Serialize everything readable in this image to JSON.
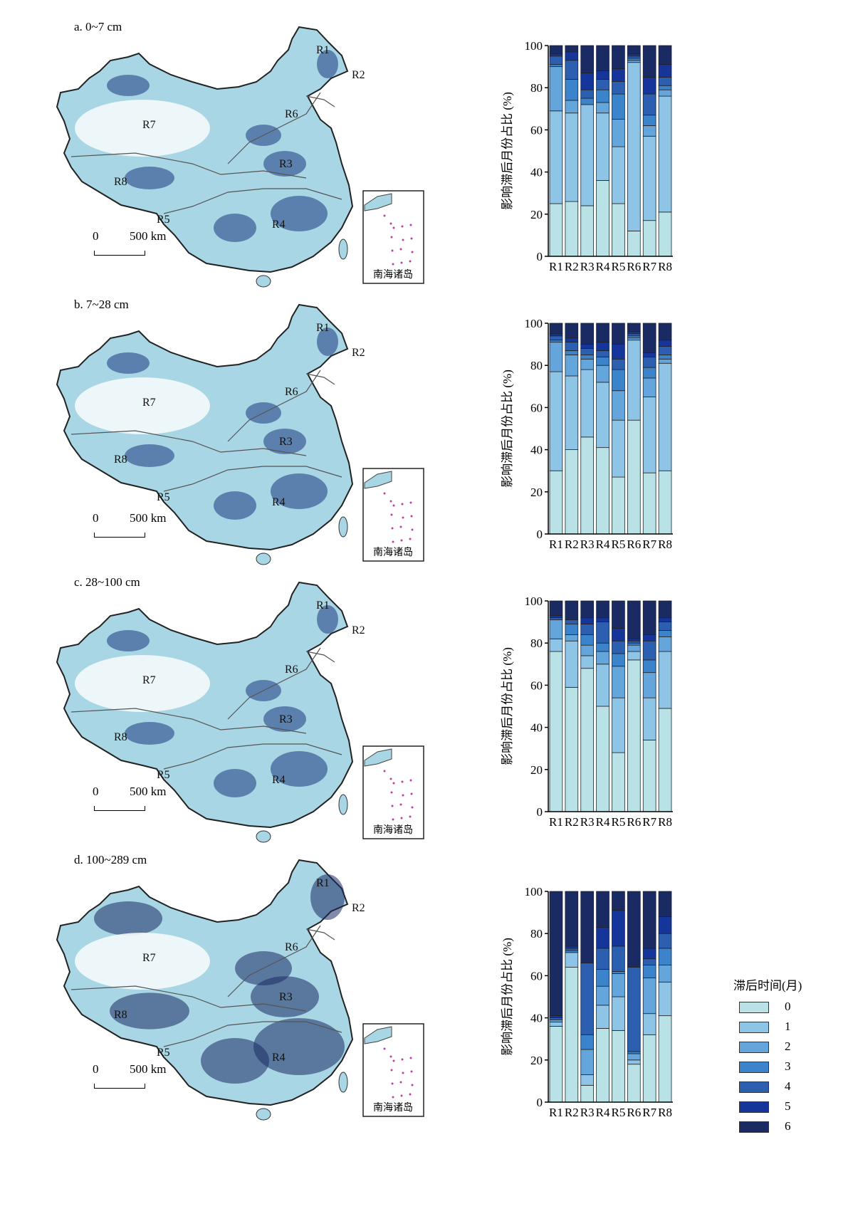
{
  "panels": [
    {
      "label": "a. 0~7 cm"
    },
    {
      "label": "b. 7~28 cm"
    },
    {
      "label": "c. 28~100 cm"
    },
    {
      "label": "d. 100~289 cm"
    }
  ],
  "map": {
    "region_labels": [
      "R1",
      "R2",
      "R3",
      "R4",
      "R5",
      "R6",
      "R7",
      "R8"
    ],
    "scale_start": "0",
    "scale_end": "500 km",
    "inset_label": "南海诸岛"
  },
  "legend": {
    "title": "滞后时间(月)",
    "items": [
      {
        "label": "0",
        "color": "#b8e2e6"
      },
      {
        "label": "1",
        "color": "#8ec4e6"
      },
      {
        "label": "2",
        "color": "#64a6dc"
      },
      {
        "label": "3",
        "color": "#3b84cb"
      },
      {
        "label": "4",
        "color": "#2c5fb0"
      },
      {
        "label": "5",
        "color": "#16359a"
      },
      {
        "label": "6",
        "color": "#1a2b63"
      }
    ]
  },
  "chart_data": [
    {
      "type": "bar",
      "stacked": true,
      "ylabel": "影响滞后月份占比 (%)",
      "ylim": [
        0,
        100
      ],
      "yticks": [
        0,
        20,
        40,
        60,
        80,
        100
      ],
      "categories": [
        "R1",
        "R2",
        "R3",
        "R4",
        "R5",
        "R6",
        "R7",
        "R8"
      ],
      "series": [
        {
          "name": "0",
          "values": [
            25,
            26,
            24,
            36,
            25,
            12,
            17,
            21
          ]
        },
        {
          "name": "1",
          "values": [
            44,
            42,
            48,
            32,
            27,
            80,
            40,
            55
          ]
        },
        {
          "name": "2",
          "values": [
            21,
            6,
            0,
            5,
            13,
            1,
            5,
            3
          ]
        },
        {
          "name": "3",
          "values": [
            1,
            10,
            3,
            6,
            12,
            1,
            5,
            2
          ]
        },
        {
          "name": "4",
          "values": [
            4,
            9,
            4,
            5,
            6,
            1,
            10,
            4
          ]
        },
        {
          "name": "5",
          "values": [
            1,
            4,
            8,
            4,
            6,
            1,
            8,
            6
          ]
        },
        {
          "name": "6",
          "values": [
            4,
            3,
            13,
            12,
            11,
            4,
            15,
            9
          ]
        }
      ]
    },
    {
      "type": "bar",
      "stacked": true,
      "ylabel": "影响滞后月份占比 (%)",
      "ylim": [
        0,
        100
      ],
      "yticks": [
        0,
        20,
        40,
        60,
        80,
        100
      ],
      "categories": [
        "R1",
        "R2",
        "R3",
        "R4",
        "R5",
        "R6",
        "R7",
        "R8"
      ],
      "series": [
        {
          "name": "0",
          "values": [
            30,
            40,
            46,
            41,
            27,
            54,
            29,
            30
          ]
        },
        {
          "name": "1",
          "values": [
            47,
            35,
            32,
            31,
            27,
            38,
            36,
            51
          ]
        },
        {
          "name": "2",
          "values": [
            14,
            10,
            5,
            8,
            14,
            1,
            9,
            2
          ]
        },
        {
          "name": "3",
          "values": [
            1,
            2,
            2,
            4,
            10,
            1,
            5,
            2
          ]
        },
        {
          "name": "4",
          "values": [
            2,
            4,
            3,
            3,
            5,
            1,
            5,
            4
          ]
        },
        {
          "name": "5",
          "values": [
            1,
            2,
            2,
            4,
            7,
            1,
            2,
            3
          ]
        },
        {
          "name": "6",
          "values": [
            5,
            7,
            10,
            9,
            10,
            4,
            14,
            8
          ]
        }
      ]
    },
    {
      "type": "bar",
      "stacked": true,
      "ylabel": "影响滞后月份占比 (%)",
      "ylim": [
        0,
        100
      ],
      "yticks": [
        0,
        20,
        40,
        60,
        80,
        100
      ],
      "categories": [
        "R1",
        "R2",
        "R3",
        "R4",
        "R5",
        "R6",
        "R7",
        "R8"
      ],
      "series": [
        {
          "name": "0",
          "values": [
            76,
            59,
            68,
            50,
            28,
            72,
            34,
            49
          ]
        },
        {
          "name": "1",
          "values": [
            6,
            22,
            6,
            20,
            26,
            4,
            20,
            27
          ]
        },
        {
          "name": "2",
          "values": [
            9,
            3,
            5,
            6,
            15,
            3,
            12,
            7
          ]
        },
        {
          "name": "3",
          "values": [
            0,
            5,
            5,
            4,
            6,
            1,
            6,
            3
          ]
        },
        {
          "name": "4",
          "values": [
            1,
            2,
            5,
            10,
            6,
            1,
            9,
            4
          ]
        },
        {
          "name": "5",
          "values": [
            1,
            0,
            3,
            2,
            6,
            1,
            3,
            2
          ]
        },
        {
          "name": "6",
          "values": [
            7,
            9,
            8,
            8,
            13,
            18,
            16,
            8
          ]
        }
      ]
    },
    {
      "type": "bar",
      "stacked": true,
      "ylabel": "影响滞后月份占比 (%)",
      "ylim": [
        0,
        100
      ],
      "yticks": [
        0,
        20,
        40,
        60,
        80,
        100
      ],
      "categories": [
        "R1",
        "R2",
        "R3",
        "R4",
        "R5",
        "R6",
        "R7",
        "R8"
      ],
      "series": [
        {
          "name": "0",
          "values": [
            36,
            64,
            8,
            35,
            34,
            18,
            32,
            41
          ]
        },
        {
          "name": "1",
          "values": [
            2,
            7,
            5,
            11,
            16,
            2,
            10,
            16
          ]
        },
        {
          "name": "2",
          "values": [
            1,
            0,
            12,
            9,
            11,
            3,
            17,
            8
          ]
        },
        {
          "name": "3",
          "values": [
            0,
            1,
            7,
            8,
            1,
            1,
            6,
            8
          ]
        },
        {
          "name": "4",
          "values": [
            1,
            1,
            34,
            10,
            12,
            40,
            3,
            7
          ]
        },
        {
          "name": "5",
          "values": [
            1,
            1,
            0,
            10,
            17,
            0,
            5,
            8
          ]
        },
        {
          "name": "6",
          "values": [
            59,
            26,
            34,
            17,
            9,
            36,
            27,
            12
          ]
        }
      ]
    }
  ]
}
